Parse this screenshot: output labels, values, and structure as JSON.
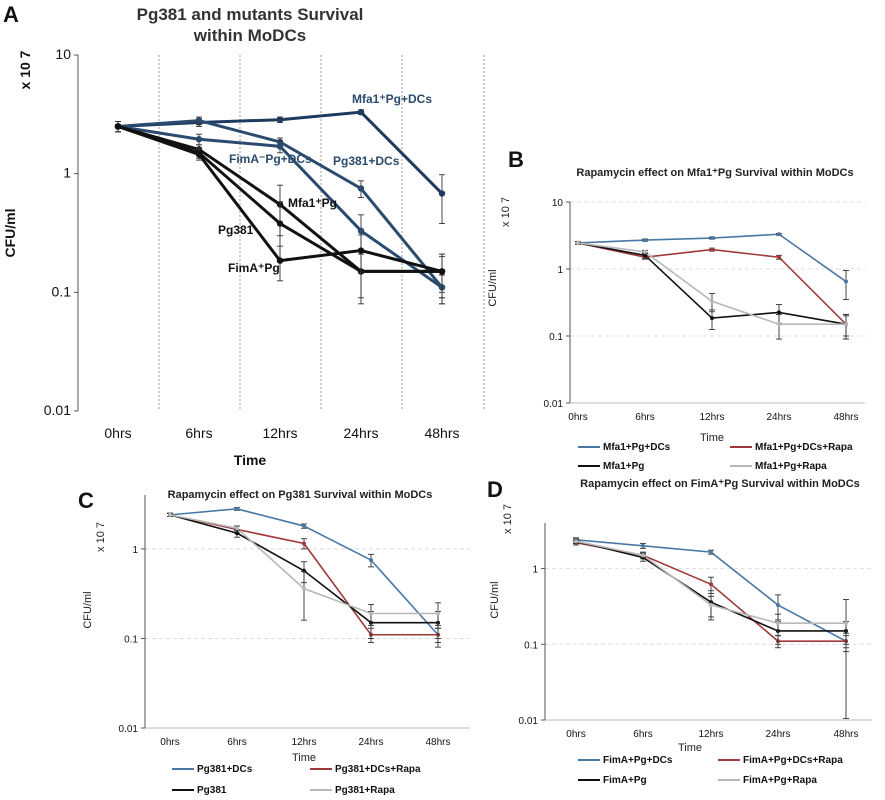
{
  "chart_data": [
    {
      "id": "A",
      "panel_letter": "A",
      "type": "line",
      "title_lines": [
        "Pg381 and mutants Survival",
        "within MoDCs"
      ],
      "xlabel": "Time",
      "ylabel": "CFU/ml",
      "y_multiplier": "x 10 7",
      "y_scale": "log",
      "ylim": [
        0.01,
        10
      ],
      "yticks": [
        "10",
        "1",
        "0.1",
        "0.01"
      ],
      "categories": [
        "0hrs",
        "6hrs",
        "12hrs",
        "24hrs",
        "48hrs"
      ],
      "grid": "vertical dotted separators",
      "legend": "inline labels",
      "series": [
        {
          "name": "Mfa1⁺Pg+DCs",
          "color": "#1f3a5f",
          "values": [
            2.5,
            2.7,
            2.85,
            3.3,
            0.68
          ],
          "errors": [
            0.25,
            0.2,
            0.15,
            0.15,
            0.3
          ]
        },
        {
          "name": "Pg381+DCs",
          "color": "#2a4a6e",
          "values": [
            2.5,
            2.8,
            1.85,
            0.75,
            0.11
          ],
          "errors": [
            0.25,
            0.2,
            0.15,
            0.12,
            0.03
          ]
        },
        {
          "name": "FimA⁻Pg+DCs",
          "color": "#2a4a6e",
          "values": [
            2.5,
            1.95,
            1.7,
            0.33,
            0.11
          ],
          "errors": [
            0.25,
            0.2,
            0.2,
            0.12,
            0.03
          ]
        },
        {
          "name": "Mfa1⁺Pg",
          "color": "#111111",
          "values": [
            2.5,
            1.6,
            0.55,
            0.15,
            0.15
          ],
          "errors": [
            0.25,
            0.15,
            0.25,
            0.07,
            0.06
          ]
        },
        {
          "name": "Pg381",
          "color": "#111111",
          "values": [
            2.5,
            1.5,
            0.38,
            0.15,
            0.15
          ],
          "errors": [
            0.25,
            0.15,
            0.2,
            0.06,
            0.05
          ]
        },
        {
          "name": "FimA⁺Pg",
          "color": "#111111",
          "values": [
            2.5,
            1.45,
            0.185,
            0.225,
            0.15
          ],
          "errors": [
            0.25,
            0.15,
            0.06,
            0.08,
            0.06
          ]
        }
      ]
    },
    {
      "id": "B",
      "panel_letter": "B",
      "type": "line",
      "title": "Rapamycin effect on Mfa1⁺Pg Survival within MoDCs",
      "xlabel": "Time",
      "ylabel": "CFU/ml",
      "y_multiplier": "x 10 7",
      "y_scale": "log",
      "ylim": [
        0.01,
        10
      ],
      "yticks": [
        "10",
        "1",
        "0.1",
        "0.01"
      ],
      "categories": [
        "0hrs",
        "6hrs",
        "12hrs",
        "24hrs",
        "48hrs"
      ],
      "grid": "horizontal dashed",
      "legend": "bottom",
      "series": [
        {
          "name": "Mfa1+Pg+DCs",
          "color": "#4a78a6",
          "values": [
            2.45,
            2.7,
            2.9,
            3.3,
            0.65
          ],
          "errors": [
            0.1,
            0.1,
            0.1,
            0.1,
            0.3
          ]
        },
        {
          "name": "Mfa1+Pg+DCs+Rapa",
          "color": "#a03a3a",
          "values": [
            2.45,
            1.5,
            1.95,
            1.5,
            0.15
          ],
          "errors": [
            0.1,
            0.1,
            0.1,
            0.1,
            0.05
          ]
        },
        {
          "name": "Mfa1+Pg",
          "color": "#111111",
          "values": [
            2.45,
            1.6,
            0.185,
            0.225,
            0.15
          ],
          "errors": [
            0.1,
            0.15,
            0.06,
            0.07,
            0.06
          ]
        },
        {
          "name": "Mfa1+Pg+Rapa",
          "color": "#b8b8b8",
          "values": [
            2.45,
            1.8,
            0.33,
            0.15,
            0.15
          ],
          "errors": [
            0.1,
            0.1,
            0.1,
            0.06,
            0.06
          ]
        }
      ]
    },
    {
      "id": "C",
      "panel_letter": "C",
      "type": "line",
      "title": "Rapamycin effect on Pg381 Survival within MoDCs",
      "xlabel": "Time",
      "ylabel": "CFU/ml",
      "y_multiplier": "x 10 7",
      "y_scale": "log",
      "ylim": [
        0.01,
        4
      ],
      "yticks": [
        "1",
        "0.1",
        "0.01"
      ],
      "categories": [
        "0hrs",
        "6hrs",
        "12hrs",
        "24hrs",
        "48hrs"
      ],
      "grid": "horizontal dashed",
      "legend": "bottom",
      "series": [
        {
          "name": "Pg381+DCs",
          "color": "#4a78a6",
          "values": [
            2.4,
            2.8,
            1.8,
            0.75,
            0.11
          ],
          "errors": [
            0.1,
            0.1,
            0.1,
            0.12,
            0.03
          ]
        },
        {
          "name": "Pg381+DCs+Rapa",
          "color": "#a03a3a",
          "values": [
            2.4,
            1.65,
            1.15,
            0.11,
            0.11
          ],
          "errors": [
            0.1,
            0.15,
            0.15,
            0.02,
            0.02
          ]
        },
        {
          "name": "Pg381",
          "color": "#111111",
          "values": [
            2.4,
            1.5,
            0.57,
            0.15,
            0.15
          ],
          "errors": [
            0.1,
            0.15,
            0.15,
            0.05,
            0.05
          ]
        },
        {
          "name": "Pg381+Rapa",
          "color": "#b8b8b8",
          "values": [
            2.4,
            1.7,
            0.36,
            0.19,
            0.19
          ],
          "errors": [
            0.1,
            0.1,
            0.2,
            0.05,
            0.06
          ]
        }
      ]
    },
    {
      "id": "D",
      "panel_letter": "D",
      "type": "line",
      "title": "Rapamycin effect on FimA⁺Pg  Survival within MoDCs",
      "xlabel": "Time",
      "ylabel": "CFU/ml",
      "y_multiplier": "x 10 7",
      "y_scale": "log",
      "ylim": [
        0.01,
        4
      ],
      "yticks": [
        "1",
        "0.1",
        "0.01"
      ],
      "categories": [
        "0hrs",
        "6hrs",
        "12hrs",
        "24hrs",
        "48hrs"
      ],
      "grid": "horizontal dashed",
      "legend": "bottom",
      "series": [
        {
          "name": "FimA+Pg+DCs",
          "color": "#4a78a6",
          "values": [
            2.4,
            2.0,
            1.65,
            0.33,
            0.11
          ],
          "errors": [
            0.15,
            0.15,
            0.1,
            0.12,
            0.03
          ]
        },
        {
          "name": "FimA+Pg+DCs+Rapa",
          "color": "#a03a3a",
          "values": [
            2.2,
            1.5,
            0.62,
            0.11,
            0.11
          ],
          "errors": [
            0.15,
            0.15,
            0.15,
            0.02,
            0.02
          ]
        },
        {
          "name": "FimA+Pg",
          "color": "#111111",
          "values": [
            2.3,
            1.4,
            0.36,
            0.15,
            0.15
          ],
          "errors": [
            0.15,
            0.15,
            0.15,
            0.05,
            0.05
          ]
        },
        {
          "name": "FimA+Pg+Rapa",
          "color": "#b8b8b8",
          "values": [
            2.3,
            1.5,
            0.33,
            0.19,
            0.19
          ],
          "errors": [
            0.15,
            0.1,
            0.1,
            0.06,
            0.2
          ]
        }
      ]
    }
  ]
}
